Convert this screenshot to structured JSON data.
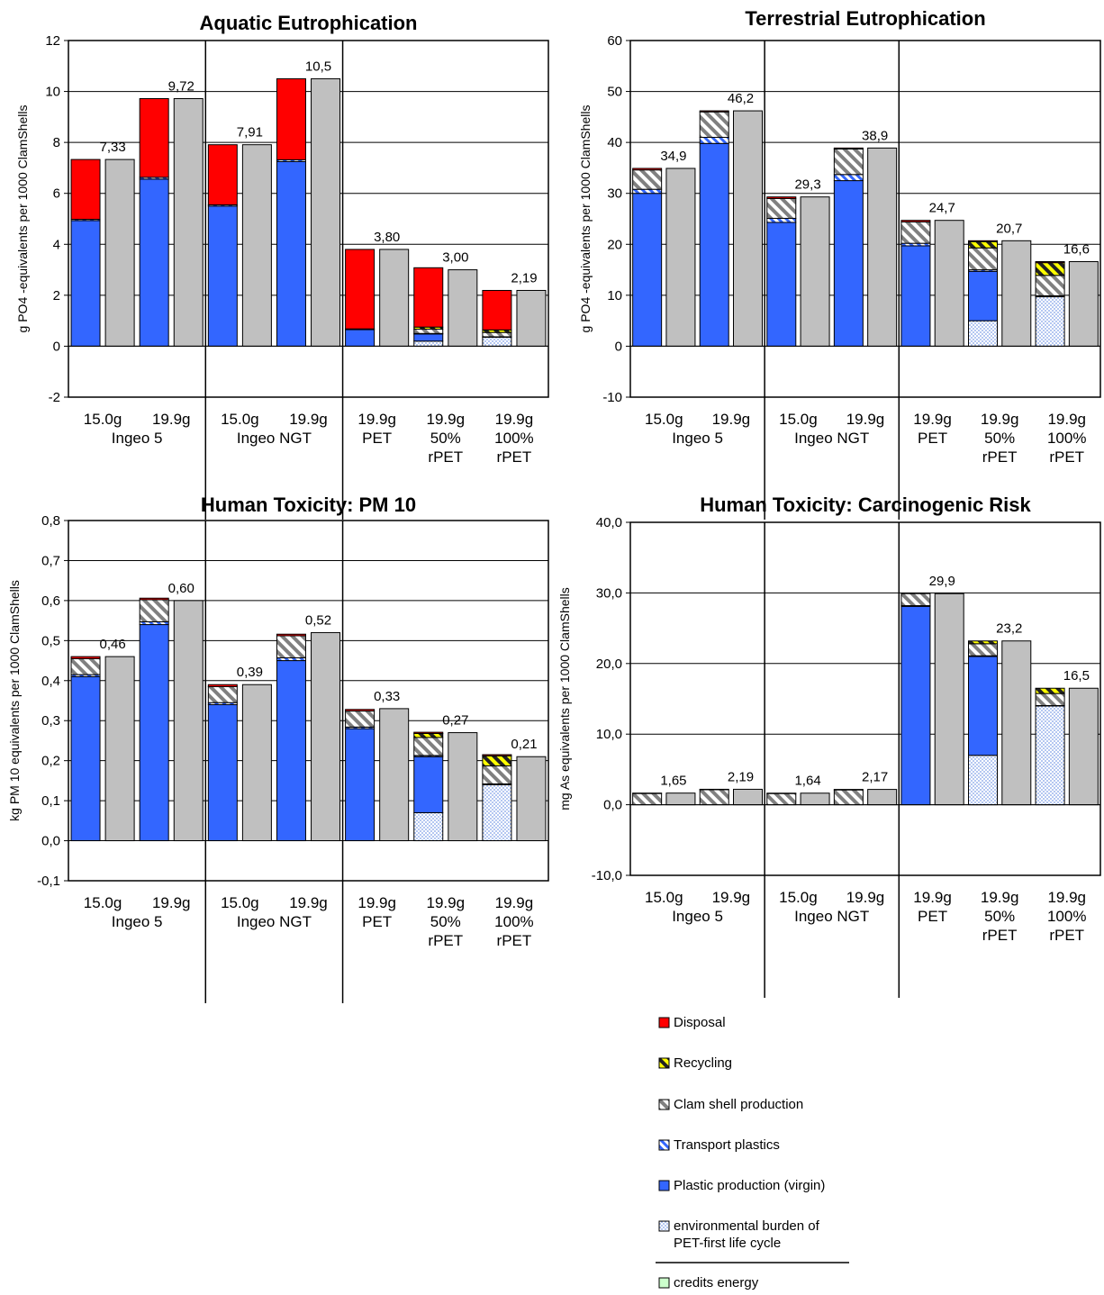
{
  "colors": {
    "disposal": "#ff0000",
    "recycling_fg": "#222222",
    "recycling_bg": "#ffff00",
    "clam_fg": "#808080",
    "clam_bg": "#ffffff",
    "transport_fg": "#3366ff",
    "transport_bg": "#ffffff",
    "plastic": "#3366ff",
    "env_dot": "#7f9fe8",
    "env_bg": "#ffffff",
    "energy": "#ccffcc",
    "total": "#c0c0c0"
  },
  "legend": {
    "items": [
      {
        "key": "disposal",
        "label": "Disposal"
      },
      {
        "key": "recycling",
        "label": "Recycling"
      },
      {
        "key": "clam",
        "label": "Clam shell production"
      },
      {
        "key": "transport",
        "label": "Transport plastics"
      },
      {
        "key": "plastic",
        "label": "Plastic production (virgin)"
      },
      {
        "key": "env",
        "label": "environmental burden of\nPET-first life cycle"
      },
      {
        "key": "energy",
        "label": "credits energy"
      }
    ]
  },
  "chart_data": [
    {
      "type": "bar",
      "title": "Aquatic Eutrophication",
      "ylabel": "g PO4 -equivalents per 1000 ClamShells",
      "ylim": [
        -2,
        12
      ],
      "yticks": [
        "-2",
        "0",
        "2",
        "4",
        "6",
        "8",
        "10",
        "12"
      ],
      "grid": true,
      "categories": [
        "15.0g Ingeo 5",
        "19.9g Ingeo 5",
        "15.0g Ingeo NGT",
        "19.9g Ingeo NGT",
        "19.9g PET",
        "19.9g 50% rPET",
        "19.9g 100% rPET"
      ],
      "cat_lines": [
        [
          "15.0g"
        ],
        [
          "19.9g"
        ],
        [
          "15.0g"
        ],
        [
          "19.9g"
        ],
        [
          "19.9g",
          "PET"
        ],
        [
          "19.9g",
          "50%",
          "rPET"
        ],
        [
          "19.9g",
          "100%",
          "rPET"
        ]
      ],
      "group_labels": [
        "Ingeo 5",
        "Ingeo NGT"
      ],
      "series": [
        {
          "key": "env",
          "name": "environmental burden of PET-first life cycle",
          "values": [
            0,
            0,
            0,
            0,
            0,
            0.2,
            0.35
          ]
        },
        {
          "key": "plastic",
          "name": "Plastic production (virgin)",
          "values": [
            4.93,
            6.56,
            5.5,
            7.25,
            0.65,
            0.28,
            0
          ]
        },
        {
          "key": "transport",
          "name": "Transport plastics",
          "values": [
            0.05,
            0.07,
            0.05,
            0.07,
            0.03,
            0.02,
            0.02
          ]
        },
        {
          "key": "clam",
          "name": "Clam shell production",
          "values": [
            0,
            0,
            0,
            0,
            0,
            0.17,
            0.17
          ]
        },
        {
          "key": "recycling",
          "name": "Recycling",
          "values": [
            0,
            0,
            0,
            0,
            0,
            0.08,
            0.1
          ]
        },
        {
          "key": "disposal",
          "name": "Disposal",
          "values": [
            2.35,
            3.09,
            2.36,
            3.18,
            3.12,
            2.33,
            1.55
          ]
        }
      ],
      "totals": [
        7.33,
        9.72,
        7.91,
        10.5,
        3.8,
        3.0,
        2.19
      ],
      "total_labels": [
        "7,33",
        "9,72",
        "7,91",
        "10,5",
        "3,80",
        "3,00",
        "2,19"
      ]
    },
    {
      "type": "bar",
      "title": "Terrestrial Eutrophication",
      "ylabel": "g PO4 -equivalents per 1000 ClamShells",
      "ylim": [
        -10,
        60
      ],
      "yticks": [
        "-10",
        "0",
        "10",
        "20",
        "30",
        "40",
        "50",
        "60"
      ],
      "grid": true,
      "categories": [
        "15.0g Ingeo 5",
        "19.9g Ingeo 5",
        "15.0g Ingeo NGT",
        "19.9g Ingeo NGT",
        "19.9g PET",
        "19.9g 50% rPET",
        "19.9g 100% rPET"
      ],
      "cat_lines": [
        [
          "15.0g"
        ],
        [
          "19.9g"
        ],
        [
          "15.0g"
        ],
        [
          "19.9g"
        ],
        [
          "19.9g",
          "PET"
        ],
        [
          "19.9g",
          "50%",
          "rPET"
        ],
        [
          "19.9g",
          "100%",
          "rPET"
        ]
      ],
      "group_labels": [
        "Ingeo 5",
        "Ingeo NGT"
      ],
      "series": [
        {
          "key": "env",
          "name": "environmental burden of PET-first life cycle",
          "values": [
            0,
            0,
            0,
            0,
            0,
            5,
            9.7
          ]
        },
        {
          "key": "plastic",
          "name": "Plastic production (virgin)",
          "values": [
            30,
            39.8,
            24.3,
            32.5,
            19.7,
            9.7,
            0
          ]
        },
        {
          "key": "transport",
          "name": "Transport plastics",
          "values": [
            0.8,
            1.2,
            0.8,
            1.2,
            0.5,
            0.3,
            0.2
          ]
        },
        {
          "key": "clam",
          "name": "Clam shell production",
          "values": [
            3.8,
            5,
            3.9,
            5,
            4.2,
            4.3,
            4
          ]
        },
        {
          "key": "recycling",
          "name": "Recycling",
          "values": [
            0,
            0,
            0,
            0,
            0,
            1.2,
            2.5
          ]
        },
        {
          "key": "disposal",
          "name": "Disposal",
          "values": [
            0.3,
            0.2,
            0.3,
            0.2,
            0.3,
            0.2,
            0.2
          ]
        }
      ],
      "totals": [
        34.9,
        46.2,
        29.3,
        38.9,
        24.7,
        20.7,
        16.6
      ],
      "total_labels": [
        "34,9",
        "46,2",
        "29,3",
        "38,9",
        "24,7",
        "20,7",
        "16,6"
      ]
    },
    {
      "type": "bar",
      "title": "Human Toxicity: PM 10",
      "ylabel": "kg PM 10 equivalents per 1000 ClamShells",
      "ylim": [
        -0.1,
        0.8
      ],
      "yticks": [
        "-0,1",
        "0,0",
        "0,1",
        "0,2",
        "0,3",
        "0,4",
        "0,5",
        "0,6",
        "0,7",
        "0,8"
      ],
      "grid": true,
      "categories": [
        "15.0g Ingeo 5",
        "19.9g Ingeo 5",
        "15.0g Ingeo NGT",
        "19.9g Ingeo NGT",
        "19.9g PET",
        "19.9g 50% rPET",
        "19.9g 100% rPET"
      ],
      "cat_lines": [
        [
          "15.0g"
        ],
        [
          "19.9g"
        ],
        [
          "15.0g"
        ],
        [
          "19.9g"
        ],
        [
          "19.9g",
          "PET"
        ],
        [
          "19.9g",
          "50%",
          "rPET"
        ],
        [
          "19.9g",
          "100%",
          "rPET"
        ]
      ],
      "group_labels": [
        "Ingeo 5",
        "Ingeo NGT"
      ],
      "series": [
        {
          "key": "env",
          "name": "environmental burden of PET-first life cycle",
          "values": [
            0,
            0,
            0,
            0,
            0,
            0.07,
            0.14
          ]
        },
        {
          "key": "plastic",
          "name": "Plastic production (virgin)",
          "values": [
            0.41,
            0.54,
            0.34,
            0.45,
            0.28,
            0.14,
            0
          ]
        },
        {
          "key": "transport",
          "name": "Transport plastics",
          "values": [
            0.005,
            0.007,
            0.005,
            0.007,
            0.004,
            0.003,
            0.002
          ]
        },
        {
          "key": "clam",
          "name": "Clam shell production",
          "values": [
            0.04,
            0.055,
            0.04,
            0.055,
            0.04,
            0.045,
            0.045
          ]
        },
        {
          "key": "recycling",
          "name": "Recycling",
          "values": [
            0,
            0,
            0,
            0,
            0,
            0.01,
            0.025
          ]
        },
        {
          "key": "disposal",
          "name": "Disposal",
          "values": [
            0.005,
            0.004,
            0.005,
            0.004,
            0.004,
            0.003,
            0.003
          ]
        }
      ],
      "totals": [
        0.46,
        0.6,
        0.39,
        0.52,
        0.33,
        0.27,
        0.21
      ],
      "total_labels": [
        "0,46",
        "0,60",
        "0,39",
        "0,52",
        "0,33",
        "0,27",
        "0,21"
      ]
    },
    {
      "type": "bar",
      "title": "Human Toxicity: Carcinogenic Risk",
      "ylabel": "mg As equivalents per 1000 ClamShells",
      "ylim": [
        -10,
        40
      ],
      "yticks": [
        "-10,0",
        "0,0",
        "10,0",
        "20,0",
        "30,0",
        "40,0"
      ],
      "grid": true,
      "categories": [
        "15.0g Ingeo 5",
        "19.9g Ingeo 5",
        "15.0g Ingeo NGT",
        "19.9g Ingeo NGT",
        "19.9g PET",
        "19.9g 50% rPET",
        "19.9g 100% rPET"
      ],
      "cat_lines": [
        [
          "15.0g"
        ],
        [
          "19.9g"
        ],
        [
          "15.0g"
        ],
        [
          "19.9g"
        ],
        [
          "19.9g",
          "PET"
        ],
        [
          "19.9g",
          "50%",
          "rPET"
        ],
        [
          "19.9g",
          "100%",
          "rPET"
        ]
      ],
      "group_labels": [
        "Ingeo 5",
        "Ingeo NGT"
      ],
      "series": [
        {
          "key": "env",
          "name": "environmental burden of PET-first life cycle",
          "values": [
            0,
            0,
            0,
            0,
            0,
            7,
            14
          ]
        },
        {
          "key": "plastic",
          "name": "Plastic production (virgin)",
          "values": [
            0,
            0,
            0,
            0,
            28.1,
            14,
            0
          ]
        },
        {
          "key": "transport",
          "name": "Transport plastics",
          "values": [
            0,
            0,
            0,
            0,
            0.1,
            0.1,
            0.05
          ]
        },
        {
          "key": "clam",
          "name": "Clam shell production",
          "values": [
            1.6,
            2.15,
            1.6,
            2.1,
            1.7,
            1.7,
            1.7
          ]
        },
        {
          "key": "recycling",
          "name": "Recycling",
          "values": [
            0,
            0,
            0,
            0,
            0,
            0.4,
            0.75
          ]
        },
        {
          "key": "disposal",
          "name": "Disposal",
          "values": [
            0.05,
            0.04,
            0.04,
            0.07,
            0,
            0,
            0
          ]
        }
      ],
      "totals": [
        1.65,
        2.19,
        1.64,
        2.17,
        29.9,
        23.2,
        16.5
      ],
      "total_labels": [
        "1,65",
        "2,19",
        "1,64",
        "2,17",
        "29,9",
        "23,2",
        "16,5"
      ]
    }
  ]
}
